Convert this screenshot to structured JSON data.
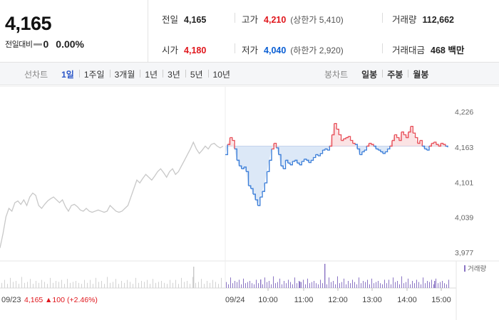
{
  "summary": {
    "price": "4,165",
    "change_label": "전일대비",
    "change_value": "0",
    "change_pct": "0.00%"
  },
  "stats": {
    "prev_label": "전일",
    "prev_value": "4,165",
    "high_label": "고가",
    "high_value": "4,210",
    "high_sub": "(상한가 5,410)",
    "volume_label": "거래량",
    "volume_value": "112,662",
    "open_label": "시가",
    "open_value": "4,180",
    "low_label": "저가",
    "low_value": "4,040",
    "low_sub": "(하한가 2,920)",
    "amount_label": "거래대금",
    "amount_value": "468 백만"
  },
  "tabs": {
    "line_title": "선차트",
    "line": [
      "1일",
      "1주일",
      "3개월",
      "1년",
      "3년",
      "5년",
      "10년"
    ],
    "candle_title": "봉차트",
    "candle": [
      "일봉",
      "주봉",
      "월봉"
    ]
  },
  "chart_data": {
    "type": "line",
    "y_ticks": [
      "4,226",
      "4,163",
      "4,101",
      "4,039",
      "3,977"
    ],
    "ylim": [
      3977,
      4226
    ],
    "baseline": 4165,
    "prev_day": {
      "date": "09/23",
      "close": "4,165",
      "change": "▲100",
      "change_pct": "(+2.46%)",
      "values": [
        3985,
        4010,
        4040,
        4055,
        4050,
        4065,
        4068,
        4062,
        4070,
        4060,
        4075,
        4082,
        4078,
        4060,
        4055,
        4062,
        4068,
        4072,
        4075,
        4070,
        4065,
        4070,
        4058,
        4050,
        4060,
        4062,
        4058,
        4052,
        4050,
        4055,
        4050,
        4048,
        4050,
        4052,
        4050,
        4048,
        4050,
        4060,
        4055,
        4050,
        4048,
        4050,
        4055,
        4060,
        4075,
        4090,
        4105,
        4100,
        4108,
        4115,
        4110,
        4105,
        4112,
        4120,
        4125,
        4118,
        4110,
        4120,
        4125,
        4115,
        4120,
        4130,
        4140,
        4150,
        4160,
        4172,
        4160,
        4152,
        4158,
        4165,
        4160,
        4168,
        4170,
        4165,
        4162,
        4165
      ]
    },
    "today": {
      "date": "09/24",
      "x_labels": [
        "10:00",
        "11:00",
        "12:00",
        "13:00",
        "14:00",
        "15:00"
      ],
      "values": [
        4150,
        4168,
        4180,
        4175,
        4160,
        4140,
        4130,
        4125,
        4128,
        4120,
        4095,
        4090,
        4080,
        4070,
        4060,
        4075,
        4085,
        4100,
        4120,
        4140,
        4160,
        4170,
        4162,
        4150,
        4130,
        4125,
        4140,
        4135,
        4132,
        4138,
        4140,
        4135,
        4132,
        4138,
        4142,
        4140,
        4136,
        4140,
        4145,
        4150,
        4148,
        4152,
        4158,
        4160,
        4158,
        4165,
        4185,
        4205,
        4195,
        4185,
        4175,
        4178,
        4180,
        4182,
        4175,
        4170,
        4168,
        4160,
        4150,
        4155,
        4158,
        4165,
        4170,
        4168,
        4165,
        4160,
        4158,
        4155,
        4152,
        4155,
        4160,
        4165,
        4175,
        4185,
        4180,
        4175,
        4190,
        4185,
        4180,
        4190,
        4200,
        4188,
        4180,
        4170,
        4175,
        4165,
        4160,
        4158,
        4165,
        4170,
        4172,
        4168,
        4165,
        4170,
        4168,
        4165,
        4163
      ]
    },
    "volume_label": "거래량"
  },
  "colors": {
    "up": "#e0161c",
    "down": "#0a5fd4",
    "prev_line": "#c8c8c8",
    "line_up": "#e8505a",
    "line_down": "#3d7fd9",
    "volume": "#8a74c4"
  }
}
